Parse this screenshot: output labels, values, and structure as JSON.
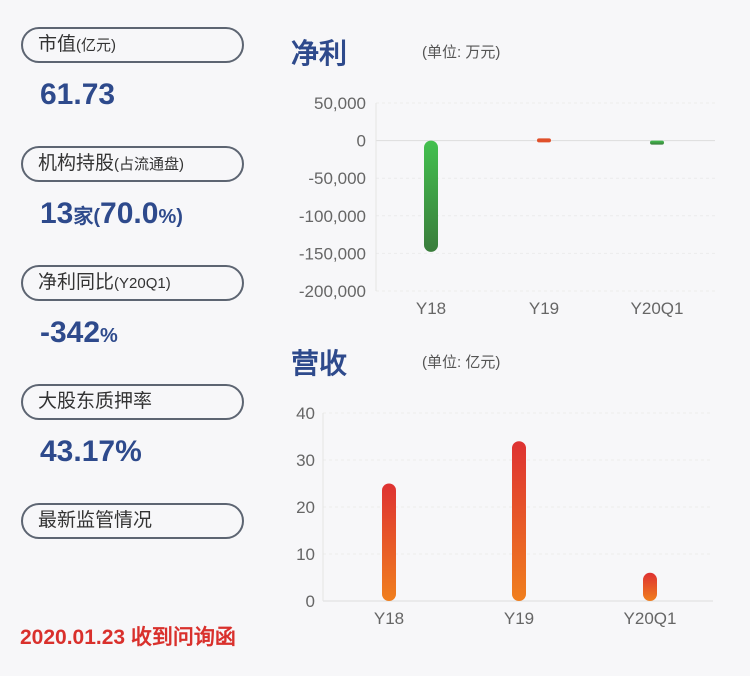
{
  "cards": [
    {
      "label": "市值",
      "label_small": "(亿元)",
      "value": "61.73",
      "value_suffix": ""
    },
    {
      "label": "机构持股",
      "label_small": "(占流通盘)",
      "value": "13",
      "value_mid": "家(",
      "value2": "70.0",
      "value_suffix": "%)"
    },
    {
      "label": "净利同比",
      "label_small": "(Y20Q1)",
      "value": "-342",
      "value_suffix": "%"
    },
    {
      "label": "大股东质押率",
      "label_small": "",
      "value": "43.17%",
      "value_suffix": ""
    },
    {
      "label": "最新监管情况",
      "label_small": ""
    }
  ],
  "news": "2020.01.23 收到问询函",
  "chart_data": [
    {
      "type": "bar",
      "title": "净利",
      "unit": "(单位: 万元)",
      "categories": [
        "Y18",
        "Y19",
        "Y20Q1"
      ],
      "values": [
        -148000,
        3000,
        -2500
      ],
      "ylim": [
        -200000,
        50000
      ],
      "yticks": [
        "50,000",
        "0",
        "-50,000",
        "-100,000",
        "-150,000",
        "-200,000"
      ],
      "colors": {
        "positive": "#e0502a",
        "negative": "#3aa845"
      }
    },
    {
      "type": "bar",
      "title": "营收",
      "unit": "(单位: 亿元)",
      "categories": [
        "Y18",
        "Y19",
        "Y20Q1"
      ],
      "values": [
        25,
        34,
        6
      ],
      "ylim": [
        0,
        40
      ],
      "yticks": [
        "40",
        "30",
        "20",
        "10",
        "0"
      ],
      "colors": {
        "top": "#de3232",
        "bottom": "#f07f1e"
      }
    }
  ]
}
